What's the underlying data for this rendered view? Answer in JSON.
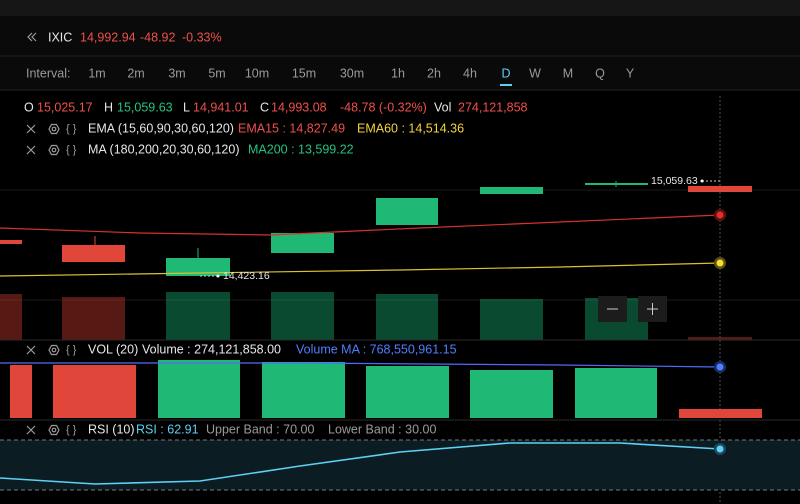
{
  "header": {
    "symbol": "IXIC",
    "price": "14,992.94",
    "change": "-48.92",
    "change_pct": "-0.33%"
  },
  "intervals": {
    "label": "Interval:",
    "items": [
      "1m",
      "2m",
      "3m",
      "5m",
      "10m",
      "15m",
      "30m",
      "1h",
      "2h",
      "4h",
      "D",
      "W",
      "M",
      "Q",
      "Y"
    ],
    "active": "D"
  },
  "ohlc": {
    "open_label": "O",
    "open": "15,025.17",
    "high_label": "H",
    "high": "15,059.63",
    "low_label": "L",
    "low": "14,941.01",
    "close_label": "C",
    "close": "14,993.08",
    "change": "-48.78 (-0.32%)",
    "volume_label": "Vol",
    "volume": "274,121,858"
  },
  "script_icon": "{ }",
  "indicators": {
    "ema": {
      "name": "EMA (15,60,90,30,60,120)",
      "ema15": "EMA15 : 14,827.49",
      "ema60": "EMA60 : 14,514.36"
    },
    "ma": {
      "name": "MA (180,200,20,30,60,120)",
      "ma200": "MA200 : 13,599.22"
    }
  },
  "price_labels": {
    "high": "15,059.63",
    "low": "14,423.16"
  },
  "volume_panel": {
    "name": "VOL (20)",
    "volume": "Volume : 274,121,858.00",
    "volume_ma": "Volume MA : 768,550,961.15"
  },
  "rsi_panel": {
    "name": "RSI (10)",
    "rsi": "RSI : 62.91",
    "upper": "Upper Band : 70.00",
    "lower": "Lower Band : 30.00"
  }
}
